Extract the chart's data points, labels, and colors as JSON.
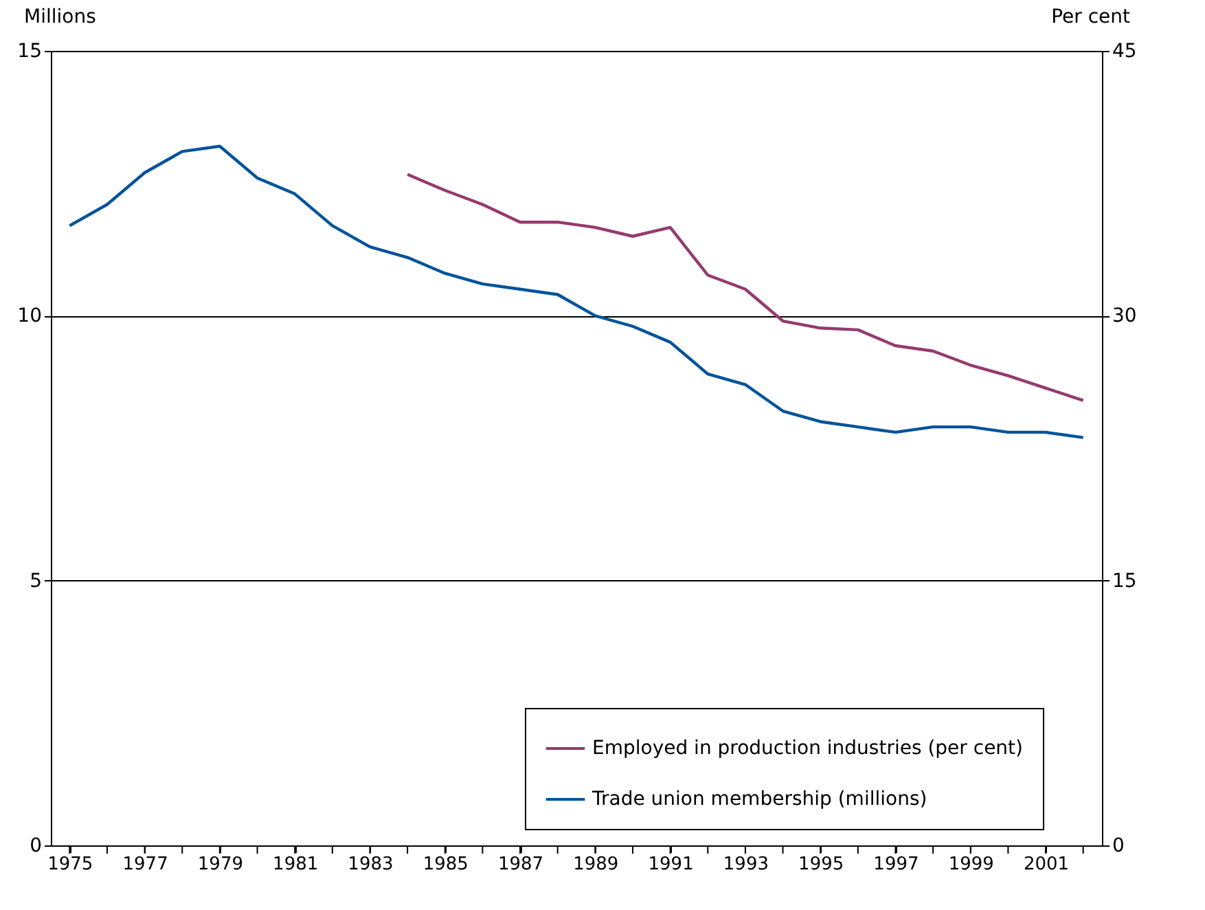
{
  "chart_data": {
    "type": "line",
    "xlabel": null,
    "ylabel": "Millions",
    "y2label": "Per cent",
    "x": [
      1975,
      1976,
      1977,
      1978,
      1979,
      1980,
      1981,
      1982,
      1983,
      1984,
      1985,
      1986,
      1987,
      1988,
      1989,
      1990,
      1991,
      1992,
      1993,
      1994,
      1995,
      1996,
      1997,
      1998,
      1999,
      2000,
      2001,
      2002
    ],
    "series": [
      {
        "name": "Employed in production industries (per cent)",
        "color": "#953a6e",
        "axis": "y2",
        "x": [
          1984,
          1985,
          1986,
          1987,
          1988,
          1989,
          1990,
          1991,
          1992,
          1993,
          1994,
          1995,
          1996,
          1997,
          1998,
          1999,
          2000,
          2001,
          2002
        ],
        "values": [
          38.0,
          37.1,
          36.3,
          35.3,
          35.3,
          35.0,
          34.5,
          35.0,
          32.3,
          31.5,
          29.7,
          29.3,
          29.2,
          28.3,
          28.0,
          27.2,
          26.6,
          25.9,
          25.2
        ]
      },
      {
        "name": "Trade union membership (millions)",
        "color": "#00539b",
        "values": [
          11.7,
          12.1,
          12.7,
          13.1,
          13.2,
          12.6,
          12.3,
          11.7,
          11.3,
          11.1,
          10.8,
          10.6,
          10.5,
          10.4,
          10.0,
          9.8,
          9.5,
          8.9,
          8.7,
          8.2,
          8.0,
          7.9,
          7.8,
          7.9,
          7.9,
          7.8,
          7.8,
          7.7
        ]
      }
    ],
    "xlim": [
      1974.5,
      2002.5
    ],
    "xticks": [
      1975,
      {
        "value": 1976,
        "label": null
      },
      1977,
      {
        "value": 1978,
        "label": null
      },
      1979,
      {
        "value": 1980,
        "label": null
      },
      1981,
      {
        "value": 1982,
        "label": null
      },
      1983,
      {
        "value": 1984,
        "label": null
      },
      1985,
      {
        "value": 1986,
        "label": null
      },
      1987,
      {
        "value": 1988,
        "label": null
      },
      1989,
      {
        "value": 1990,
        "label": null
      },
      1991,
      {
        "value": 1992,
        "label": null
      },
      1993,
      {
        "value": 1994,
        "label": null
      },
      1995,
      {
        "value": 1996,
        "label": null
      },
      1997,
      {
        "value": 1998,
        "label": null
      },
      1999,
      {
        "value": 2000,
        "label": null
      },
      2001,
      {
        "value": 2002,
        "label": null
      }
    ],
    "ylim": [
      0,
      15
    ],
    "yticks": [
      0,
      5,
      10,
      15
    ],
    "y2lim": [
      0,
      45
    ],
    "y2ticks": [
      0,
      15,
      30,
      45
    ],
    "grid": "y",
    "legend": "bottom right",
    "marker": "none",
    "line_style": "solid"
  }
}
